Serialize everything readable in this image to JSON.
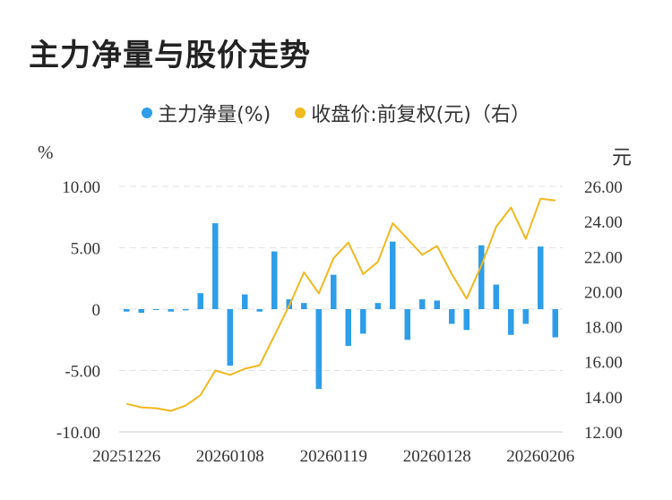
{
  "chart_data": {
    "type": "bar",
    "title": "主力净量与股价走势",
    "legend_position": "top-center",
    "y_left_unit": "%",
    "y_right_unit": "元",
    "y_left_ticks": [
      "10.00",
      "5.00",
      "0",
      "-5.00",
      "-10.00"
    ],
    "y_right_ticks": [
      "26.00",
      "24.00",
      "22.00",
      "20.00",
      "18.00",
      "16.00",
      "14.00",
      "12.00"
    ],
    "ylim_left": [
      -10,
      10
    ],
    "ylim_right": [
      12,
      26
    ],
    "x_tick_labels": [
      "20251226",
      "20260108",
      "20260119",
      "20260128",
      "20260206"
    ],
    "grid": true,
    "colors": {
      "bar": "#2f9ee8",
      "line": "#f2b81f"
    },
    "series": [
      {
        "name": "主力净量(%)",
        "type": "bar",
        "axis": "left",
        "values": [
          -0.2,
          -0.3,
          -0.05,
          -0.2,
          -0.1,
          1.3,
          7.0,
          -4.6,
          1.2,
          -0.2,
          4.7,
          0.8,
          0.5,
          -6.5,
          2.8,
          -3.0,
          -2.0,
          0.5,
          5.5,
          -2.5,
          0.8,
          0.7,
          -1.2,
          -1.7,
          5.2,
          2.0,
          -2.1,
          -1.2,
          5.1,
          -2.3
        ]
      },
      {
        "name": "收盘价:前复权(元)（右）",
        "type": "line",
        "axis": "right",
        "values": [
          13.6,
          13.4,
          13.35,
          13.2,
          13.5,
          14.1,
          15.5,
          15.25,
          15.6,
          15.8,
          17.5,
          19.2,
          21.1,
          19.9,
          21.9,
          22.8,
          21.0,
          21.7,
          23.9,
          23.0,
          22.1,
          22.6,
          21.0,
          19.6,
          21.5,
          23.7,
          24.8,
          23.0,
          25.3,
          25.2
        ]
      }
    ]
  }
}
